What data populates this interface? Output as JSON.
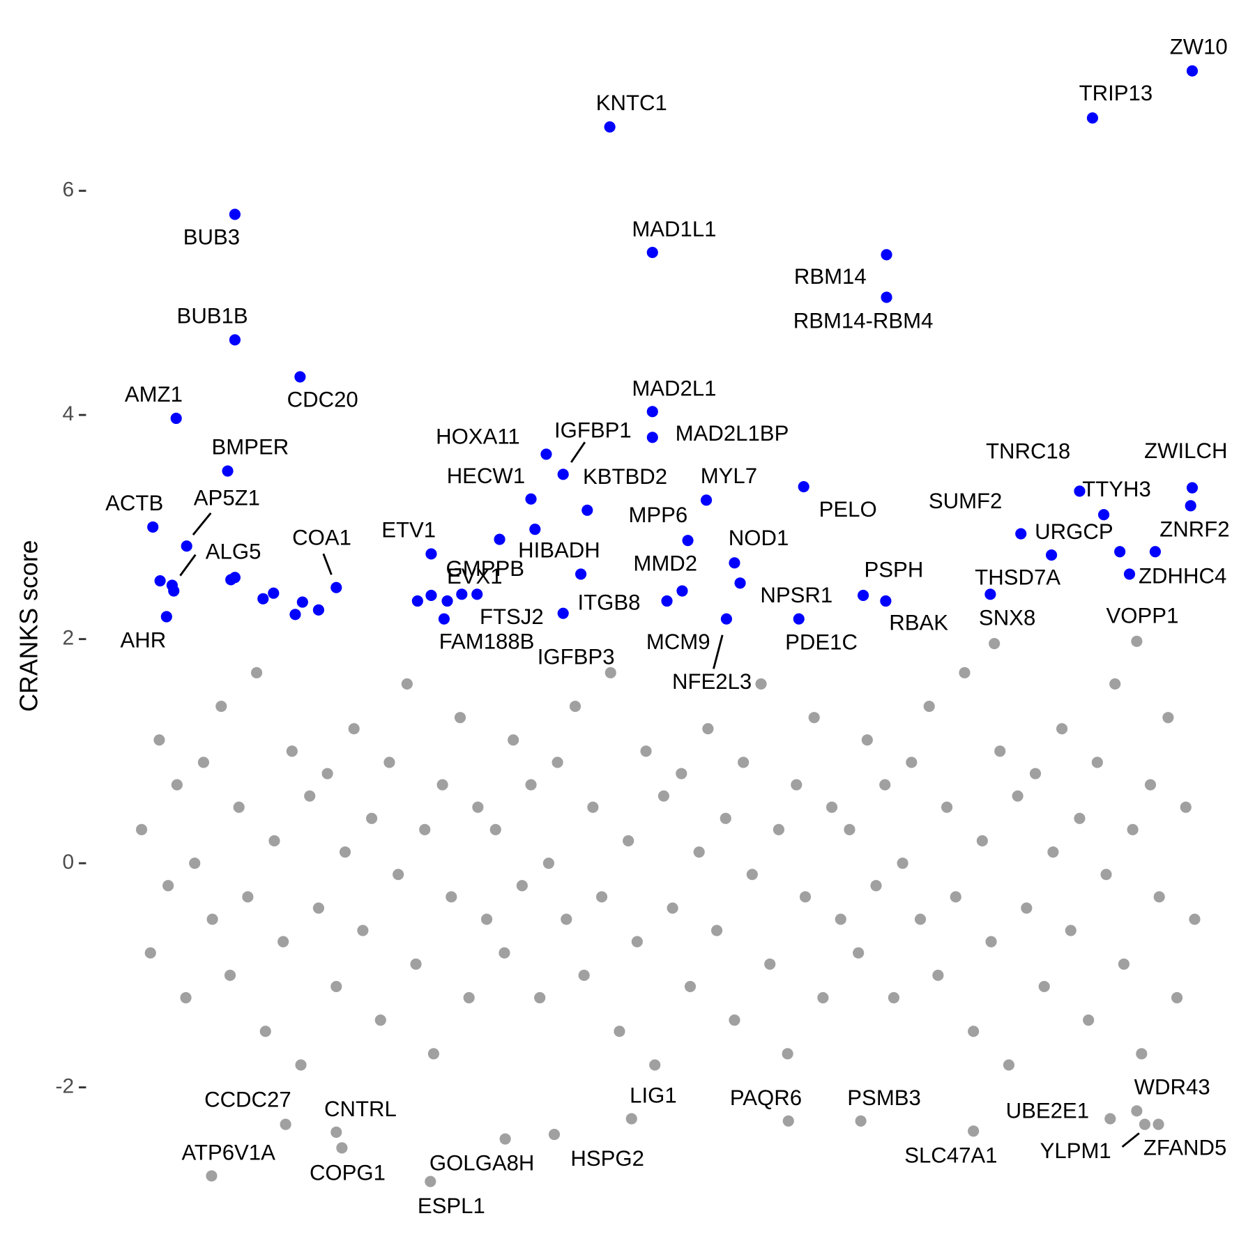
{
  "chart_data": {
    "type": "scatter",
    "ylabel": "CRANKS score",
    "xlim": [
      0,
      1435
    ],
    "ylim": [
      -3.2,
      7.3
    ],
    "yticks": [
      -2,
      0,
      2,
      4,
      6
    ],
    "grid": false,
    "series": [
      {
        "color": "#a0a0a0",
        "x": [
          66,
          77,
          88,
          99,
          110,
          121,
          132,
          143,
          154,
          165,
          176,
          187,
          198,
          209,
          220,
          231,
          242,
          253,
          264,
          275,
          286,
          297,
          308,
          319,
          330,
          341,
          352,
          363,
          374,
          385,
          396,
          407,
          418,
          429,
          440,
          451,
          462,
          473,
          484,
          495,
          506,
          517,
          528,
          539,
          550,
          561,
          572,
          583,
          594,
          605,
          616,
          627,
          638,
          649,
          660,
          671,
          682,
          693,
          704,
          715,
          726,
          737,
          748,
          759,
          770,
          781,
          792,
          803,
          814,
          825,
          836,
          847,
          858,
          869,
          880,
          891,
          902,
          913,
          924,
          935,
          946,
          957,
          968,
          979,
          990,
          1001,
          1012,
          1023,
          1034,
          1045,
          1056,
          1067,
          1078,
          1089,
          1100,
          1111,
          1122,
          1133,
          1144,
          1155,
          1166,
          1177,
          1188,
          1199,
          1210,
          1221,
          1232,
          1243,
          1254,
          1265,
          1276,
          1287,
          1298,
          1309,
          1320,
          1331,
          1342,
          1353,
          1364,
          1375
        ],
        "values": [
          0.3,
          -0.8,
          1.1,
          -0.2,
          0.7,
          -1.2,
          0.0,
          0.9,
          -0.5,
          1.4,
          -1.0,
          0.5,
          -0.3,
          1.7,
          -1.5,
          0.2,
          -0.7,
          1.0,
          -1.8,
          0.6,
          -0.4,
          0.8,
          -1.1,
          0.1,
          1.2,
          -0.6,
          0.4,
          -1.4,
          0.9,
          -0.1,
          1.6,
          -0.9,
          0.3,
          -1.7,
          0.7,
          -0.3,
          1.3,
          -1.2,
          0.5,
          -0.5,
          0.3,
          -0.8,
          1.1,
          -0.2,
          0.7,
          -1.2,
          0.0,
          0.9,
          -0.5,
          1.4,
          -1.0,
          0.5,
          -0.3,
          1.7,
          -1.5,
          0.2,
          -0.7,
          1.0,
          -1.8,
          0.6,
          -0.4,
          0.8,
          -1.1,
          0.1,
          1.2,
          -0.6,
          0.4,
          -1.4,
          0.9,
          -0.1,
          1.6,
          -0.9,
          0.3,
          -1.7,
          0.7,
          -0.3,
          1.3,
          -1.2,
          0.5,
          -0.5,
          0.3,
          -0.8,
          1.1,
          -0.2,
          0.7,
          -1.2,
          0.0,
          0.9,
          -0.5,
          1.4,
          -1.0,
          0.5,
          -0.3,
          1.7,
          -1.5,
          0.2,
          -0.7,
          1.0,
          -1.8,
          0.6,
          -0.4,
          0.8,
          -1.1,
          0.1,
          1.2,
          -0.6,
          0.4,
          -1.4,
          0.9,
          -0.1,
          1.6,
          -0.9,
          0.3,
          -1.7,
          0.7,
          -0.3,
          1.3,
          -1.2,
          0.5,
          -0.5
        ]
      },
      {
        "color": "#a0a0a0",
        "x": [
          245,
          153,
          308,
          315,
          518,
          425,
          579,
          675,
          870,
          960,
          1100,
          1270,
          1303,
          1313,
          1330,
          1303,
          1126
        ],
        "values": [
          -2.33,
          -2.79,
          -2.4,
          -2.54,
          -2.46,
          -2.84,
          -2.42,
          -2.28,
          -2.3,
          -2.3,
          -2.39,
          -2.28,
          -2.21,
          -2.33,
          -2.33,
          1.98,
          1.96
        ],
        "labels": [
          "CCDC27",
          "ATP6V1A",
          "CNTRL",
          "COPG1",
          "GOLGA8H",
          "ESPL1",
          "HSPG2",
          "LIG1",
          "PAQR6",
          "PSMB3",
          "SLC47A1",
          "UBE2E1",
          "WDR43",
          "YLPM1",
          "ZFAND5",
          "VOPP1",
          "SNX8"
        ]
      },
      {
        "color": "#0000ff",
        "x": [
          1372,
          1248,
          648,
          182,
          701,
          992,
          992,
          182,
          263,
          109,
          701,
          701,
          569,
          590,
          173,
          1372,
          889,
          1232,
          550,
          768,
          1370,
          620,
          1262,
          80,
          555,
          1159,
          745,
          426,
          122,
          1197,
          1294,
          1282,
          1326,
          1121,
          106,
          97,
          89,
          104,
          182,
          177,
          217,
          230,
          257,
          266,
          286,
          308,
          409,
          426,
          446,
          442,
          464,
          483,
          511,
          612,
          590,
          719,
          738,
          803,
          810,
          793,
          883,
          963,
          991
        ],
        "values": [
          7.07,
          6.65,
          6.57,
          5.79,
          5.45,
          5.43,
          5.05,
          4.67,
          4.34,
          3.97,
          4.03,
          3.8,
          3.65,
          3.47,
          3.5,
          3.35,
          3.36,
          3.32,
          3.25,
          3.24,
          3.19,
          3.15,
          3.11,
          3.0,
          2.98,
          2.94,
          2.88,
          2.76,
          2.83,
          2.75,
          2.58,
          2.78,
          2.78,
          2.4,
          2.43,
          2.2,
          2.52,
          2.48,
          2.55,
          2.53,
          2.36,
          2.41,
          2.22,
          2.33,
          2.26,
          2.46,
          2.34,
          2.39,
          2.34,
          2.18,
          2.4,
          2.4,
          2.89,
          2.58,
          2.23,
          2.34,
          2.43,
          2.68,
          2.5,
          2.18,
          2.18,
          2.39,
          2.34
        ],
        "labels": [
          "ZW10",
          "TRIP13",
          "KNTC1",
          "BUB3",
          "MAD1L1",
          "RBM14",
          "RBM14-RBM4",
          "BUB1B",
          "CDC20",
          "AMZ1",
          "MAD2L1",
          "MAD2L1BP",
          "HOXA11",
          "IGFBP1",
          "BMPER",
          "ZWILCH",
          "PELO",
          "TNRC18",
          "HECW1",
          "MYL7",
          null,
          "KBTBD2",
          "TTYH3",
          "ACTB",
          "HIBADH",
          "SUMF2",
          "MPP6",
          "ETV1",
          "AP5Z1",
          "URGCP",
          "ZDHHC4",
          null,
          "ZNRF2",
          "THSD7A",
          "ALG5",
          "AHR",
          null,
          null,
          null,
          null,
          null,
          null,
          null,
          null,
          null,
          "COA1",
          "EVX1",
          null,
          null,
          "FAM188B",
          "GMPPB",
          "FTSJ2",
          null,
          "ITGB8",
          "IGFBP3",
          "MMD2",
          "MCM9",
          "NOD1",
          "NPSR1",
          "NFE2L3",
          "PDE1C",
          "PSPH",
          "RBAK"
        ]
      }
    ]
  }
}
